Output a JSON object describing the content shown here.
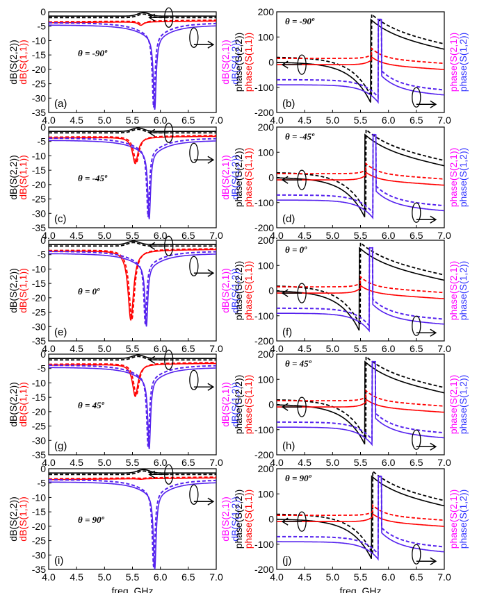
{
  "colors": {
    "s11": "#ff0000",
    "s22": "#000000",
    "s21": "#ff00ff",
    "s12": "#3333ff",
    "s12_line": "#5522ee"
  },
  "xlabel": "freq, GHz",
  "left_ylabel_parts": [
    "dB(S(2,2))",
    "dB(S(1,1))"
  ],
  "left_ylabel_right_parts": [
    "dB(S(2,1))",
    "dB(S(1,2))"
  ],
  "right_ylabel_parts": [
    "phase(S(2,2))",
    "phase(S(1,1))"
  ],
  "right_ylabel_right_parts": [
    "phase(S(2,1))",
    "phase(S(1,2))"
  ],
  "chart_data": [
    {
      "type": "line",
      "label": "(a)",
      "theta": "θ = -90º",
      "xlim": [
        4.0,
        7.0
      ],
      "ylim": [
        -35,
        0
      ],
      "xticks": [
        "4.0",
        "4.5",
        "5.0",
        "5.5",
        "6.0",
        "6.5",
        "7.0"
      ],
      "yticks": [
        "0",
        "-5",
        "-10",
        "-15",
        "-20",
        "-25",
        "-30",
        "-35"
      ],
      "dips": {
        "s11_freq": 5.65,
        "s11_min": -5,
        "s12_freq": 5.9,
        "s12_min": -34
      }
    },
    {
      "type": "line",
      "label": "(b)",
      "theta": "θ = -90º",
      "xlim": [
        4.0,
        7.0
      ],
      "ylim": [
        -200,
        200
      ],
      "xticks": [
        "4.0",
        "4.5",
        "5.0",
        "5.5",
        "6.0",
        "6.5",
        "7.0"
      ],
      "yticks": [
        "200",
        "100",
        "0",
        "-100",
        "-200"
      ],
      "resonance": {
        "s_freq": 5.7,
        "s12_freq": 5.88
      }
    },
    {
      "type": "line",
      "label": "(c)",
      "theta": "θ = -45º",
      "xlim": [
        4.0,
        7.0
      ],
      "ylim": [
        -35,
        0
      ],
      "xticks": [
        "4.0",
        "4.5",
        "5.0",
        "5.5",
        "6.0",
        "6.5",
        "7.0"
      ],
      "yticks": [
        "0",
        "-5",
        "-10",
        "-15",
        "-20",
        "-25",
        "-30",
        "-35"
      ],
      "dips": {
        "s11_freq": 5.55,
        "s11_min": -13,
        "s12_freq": 5.8,
        "s12_min": -32
      }
    },
    {
      "type": "line",
      "label": "(d)",
      "theta": "θ = -45º",
      "xlim": [
        4.0,
        7.0
      ],
      "ylim": [
        -200,
        200
      ],
      "xticks": [
        "4.0",
        "4.5",
        "5.0",
        "5.5",
        "6.0",
        "6.5",
        "7.0"
      ],
      "yticks": [
        "200",
        "100",
        "0",
        "-100",
        "-200"
      ],
      "resonance": {
        "s_freq": 5.6,
        "s12_freq": 5.78
      }
    },
    {
      "type": "line",
      "label": "(e)",
      "theta": "θ = 0º",
      "xlim": [
        4.0,
        7.0
      ],
      "ylim": [
        -35,
        0
      ],
      "xticks": [
        "4.0",
        "4.5",
        "5.0",
        "5.5",
        "6.0",
        "6.5",
        "7.0"
      ],
      "yticks": [
        "0",
        "-5",
        "-10",
        "-15",
        "-20",
        "-25",
        "-30",
        "-35"
      ],
      "dips": {
        "s11_freq": 5.47,
        "s11_min": -28,
        "s12_freq": 5.75,
        "s12_min": -30
      }
    },
    {
      "type": "line",
      "label": "(f)",
      "theta": "θ = 0º",
      "xlim": [
        4.0,
        7.0
      ],
      "ylim": [
        -200,
        200
      ],
      "xticks": [
        "4.0",
        "4.5",
        "5.0",
        "5.5",
        "6.0",
        "6.5",
        "7.0"
      ],
      "yticks": [
        "200",
        "100",
        "0",
        "-100",
        "-200"
      ],
      "resonance": {
        "s_freq": 5.5,
        "s12_freq": 5.72
      }
    },
    {
      "type": "line",
      "label": "(g)",
      "theta": "θ = 45º",
      "xlim": [
        4.0,
        7.0
      ],
      "ylim": [
        -35,
        0
      ],
      "xticks": [
        "4.0",
        "4.5",
        "5.0",
        "5.5",
        "6.0",
        "6.5",
        "7.0"
      ],
      "yticks": [
        "0",
        "-5",
        "-10",
        "-15",
        "-20",
        "-25",
        "-30",
        "-35"
      ],
      "dips": {
        "s11_freq": 5.55,
        "s11_min": -15,
        "s12_freq": 5.8,
        "s12_min": -33
      }
    },
    {
      "type": "line",
      "label": "(h)",
      "theta": "θ = 45º",
      "xlim": [
        4.0,
        7.0
      ],
      "ylim": [
        -200,
        200
      ],
      "xticks": [
        "4.0",
        "4.5",
        "5.0",
        "5.5",
        "6.0",
        "6.5",
        "7.0"
      ],
      "yticks": [
        "200",
        "100",
        "0",
        "-100",
        "-200"
      ],
      "resonance": {
        "s_freq": 5.6,
        "s12_freq": 5.77
      }
    },
    {
      "type": "line",
      "label": "(i)",
      "theta": "θ = 90º",
      "xlim": [
        4.0,
        7.0
      ],
      "ylim": [
        -35,
        0
      ],
      "xticks": [
        "4.0",
        "4.5",
        "5.0",
        "5.5",
        "6.0",
        "6.5",
        "7.0"
      ],
      "yticks": [
        "0",
        "-5",
        "-10",
        "-15",
        "-20",
        "-25",
        "-30",
        "-35"
      ],
      "dips": {
        "s11_freq": 5.65,
        "s11_min": -4,
        "s12_freq": 5.9,
        "s12_min": -35
      }
    },
    {
      "type": "line",
      "label": "(j)",
      "theta": "θ = 90º",
      "xlim": [
        4.0,
        7.0
      ],
      "ylim": [
        -200,
        200
      ],
      "xticks": [
        "4.0",
        "4.5",
        "5.0",
        "5.5",
        "6.0",
        "6.5",
        "7.0"
      ],
      "yticks": [
        "200",
        "100",
        "0",
        "-100",
        "-200"
      ],
      "resonance": {
        "s_freq": 5.72,
        "s12_freq": 5.88
      }
    }
  ]
}
